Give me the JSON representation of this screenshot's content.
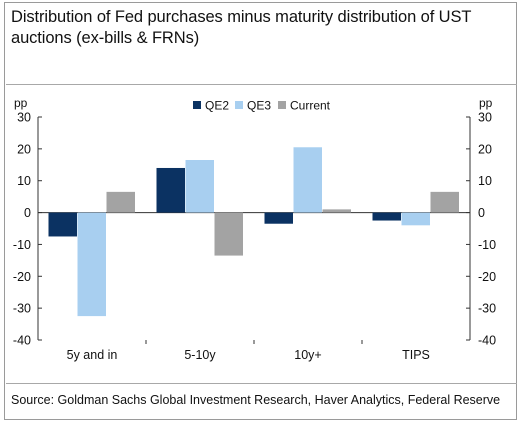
{
  "title": "Distribution of Fed purchases minus maturity distribution of UST auctions (ex-bills & FRNs)",
  "source": "Source: Goldman Sachs Global Investment Research, Haver Analytics, Federal Reserve",
  "colors": {
    "QE2": "#0b3262",
    "QE3": "#a8cff0",
    "Current": "#a3a3a3"
  },
  "chart_data": {
    "type": "bar",
    "title": "Distribution of Fed purchases minus maturity distribution of UST auctions (ex-bills & FRNs)",
    "categories": [
      "5y and in",
      "5-10y",
      "10y+",
      "TIPS"
    ],
    "series": [
      {
        "name": "QE2",
        "values": [
          -7.5,
          14,
          -3.5,
          -2.5
        ]
      },
      {
        "name": "QE3",
        "values": [
          -32.5,
          16.5,
          20.5,
          -4
        ]
      },
      {
        "name": "Current",
        "values": [
          6.5,
          -13.5,
          1,
          6.5
        ]
      }
    ],
    "ylabel_left": "pp",
    "ylabel_right": "pp",
    "ylim": [
      -40,
      30
    ],
    "yticks": [
      30,
      20,
      10,
      0,
      -10,
      -20,
      -30,
      -40
    ],
    "ytick_labels": [
      "30",
      "20",
      "10",
      "0",
      "-10",
      "-20",
      "-30",
      "-40"
    ],
    "grid": false,
    "legend_position": "top-center"
  }
}
